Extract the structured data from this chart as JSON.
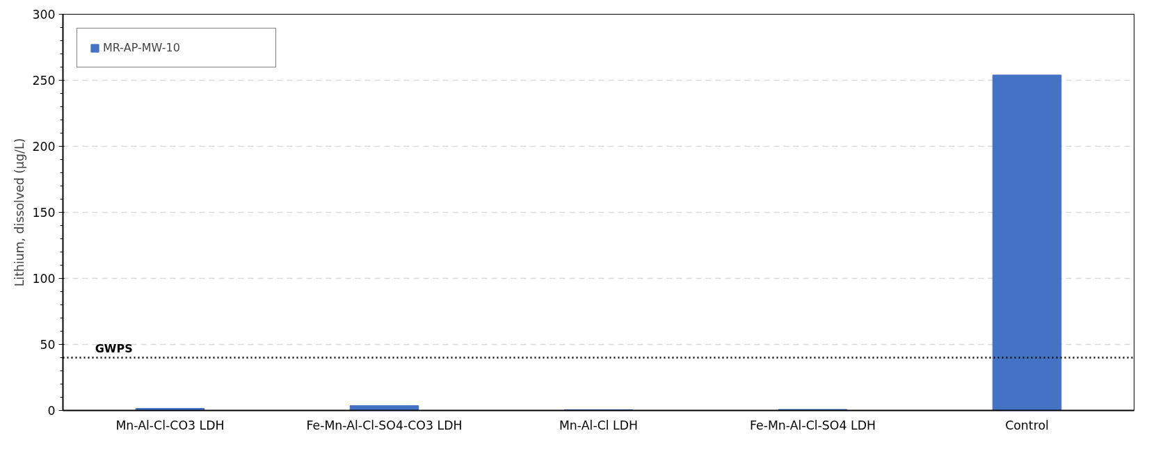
{
  "chart_data": {
    "type": "bar",
    "ylabel": "Lithium, dissolved (µg/L)",
    "categories": [
      "Mn-Al-Cl-CO3 LDH",
      "Fe-Mn-Al-Cl-SO4-CO3 LDH",
      "Mn-Al-Cl LDH",
      "Fe-Mn-Al-Cl-SO4 LDH",
      "Control"
    ],
    "series": [
      {
        "name": "MR-AP-MW-10",
        "color": "#4472c4",
        "values": [
          1.6,
          3.7,
          0.6,
          0.8,
          254
        ]
      }
    ],
    "ylim": [
      0,
      300
    ],
    "yticks": [
      0,
      50,
      100,
      150,
      200,
      250,
      300
    ],
    "ref_lines": [
      {
        "axis": "y",
        "value": 40,
        "label": "GWPS",
        "color": "#000000",
        "line_style": "dotted"
      }
    ],
    "grid": "y",
    "legend": "top left"
  }
}
